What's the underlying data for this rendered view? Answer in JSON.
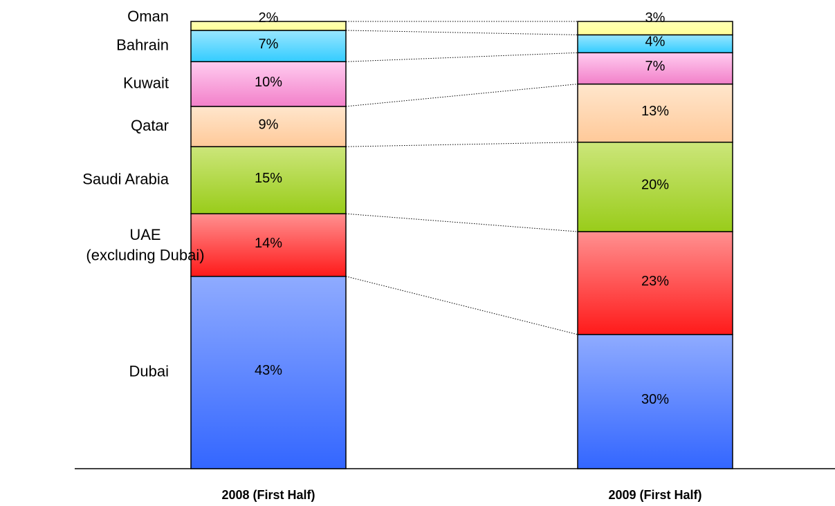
{
  "chart_data": {
    "type": "bar",
    "stacked": true,
    "normalized_percent": true,
    "categories": [
      "2008 (First Half)",
      "2009 (First Half)"
    ],
    "series": [
      {
        "name": "Dubai",
        "values": [
          43,
          30
        ]
      },
      {
        "name": "UAE (excluding Dubai)",
        "values": [
          14,
          23
        ]
      },
      {
        "name": "Saudi Arabia",
        "values": [
          15,
          20
        ]
      },
      {
        "name": "Qatar",
        "values": [
          9,
          13
        ]
      },
      {
        "name": "Kuwait",
        "values": [
          10,
          7
        ]
      },
      {
        "name": "Bahrain",
        "values": [
          7,
          4
        ]
      },
      {
        "name": "Oman",
        "values": [
          2,
          3
        ]
      }
    ],
    "data_label_format": "{v}%",
    "series_colors": [
      [
        "#8fabff",
        "#3366ff"
      ],
      [
        "#ff9090",
        "#ff1a1a"
      ],
      [
        "#cce67a",
        "#99cc1a"
      ],
      [
        "#ffe6cc",
        "#ffc999"
      ],
      [
        "#ffccf0",
        "#f280c9"
      ],
      [
        "#99e6ff",
        "#33ccff"
      ],
      [
        "#ffffb3",
        "#ffff99"
      ]
    ],
    "legend": "left-of-first-bar",
    "connectors": "dotted",
    "title": "",
    "xlabel": "",
    "ylabel": ""
  }
}
